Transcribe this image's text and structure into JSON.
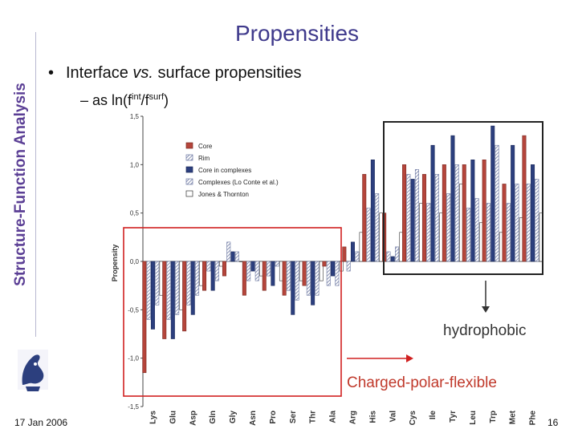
{
  "side_title": "Structure-Function Analysis",
  "slide_title": "Propensities",
  "bullet": {
    "prefix": "Interface ",
    "italic": "vs.",
    "suffix": " surface propensities"
  },
  "sub_bullet": {
    "prefix": "– as ln(f",
    "sup1": "int",
    "mid": "/f",
    "sup2": "surf",
    "suffix": ")"
  },
  "footer": {
    "date": "17 Jan 2006",
    "page": "16"
  },
  "colors": {
    "core": "#b5453b",
    "rim": "#9aa4c0",
    "core_complex": "#2c3f7e",
    "complexes": "#9aa4c0",
    "jones": "#ffffff",
    "title": "#3f3a8c",
    "side_title": "#5b3f95",
    "red_box": "#d02020"
  },
  "annotations": {
    "hydrophobic": "hydrophobic",
    "charged": "Charged-polar-flexible"
  },
  "chart_data": {
    "type": "bar",
    "ylabel": "Propensity",
    "ylim": [
      -1.5,
      1.5
    ],
    "yticks": [
      "1,5",
      "1,0",
      "0,5",
      "0,0",
      "-0,5",
      "-1,0",
      "-1,5"
    ],
    "ytick_values": [
      1.5,
      1.0,
      0.5,
      0.0,
      -0.5,
      -1.0,
      -1.5
    ],
    "legend_placement": "top-left",
    "categories": [
      "Lys",
      "Glu",
      "Asp",
      "Gln",
      "Gly",
      "Asn",
      "Pro",
      "Ser",
      "Thr",
      "Ala",
      "Arg",
      "His",
      "Val",
      "Cys",
      "Ile",
      "Tyr",
      "Leu",
      "Trp",
      "Met",
      "Phe"
    ],
    "series": [
      {
        "name": "Core",
        "values": [
          -1.15,
          -0.8,
          -0.72,
          -0.3,
          -0.15,
          -0.35,
          -0.3,
          -0.35,
          -0.25,
          -0.05,
          0.15,
          0.9,
          0.5,
          1.0,
          0.9,
          1.0,
          1.0,
          1.05,
          0.8,
          1.3
        ]
      },
      {
        "name": "Rim",
        "values": [
          -0.6,
          -0.6,
          -0.45,
          -0.1,
          0.2,
          -0.2,
          -0.15,
          -0.3,
          -0.35,
          -0.25,
          -0.1,
          0.55,
          0.1,
          0.9,
          0.6,
          0.7,
          0.55,
          0.6,
          0.6,
          0.8
        ]
      },
      {
        "name": "Core in complexes",
        "values": [
          -0.7,
          -0.8,
          -0.55,
          -0.3,
          0.1,
          -0.1,
          -0.25,
          -0.55,
          -0.45,
          -0.15,
          0.2,
          1.05,
          0.05,
          0.85,
          1.2,
          1.3,
          1.05,
          1.4,
          1.2,
          1.0
        ]
      },
      {
        "name": "Complexes (Lo Conte et al.)",
        "values": [
          -0.45,
          -0.55,
          -0.35,
          -0.2,
          0.1,
          -0.2,
          -0.05,
          -0.4,
          -0.35,
          -0.25,
          0.1,
          0.7,
          0.15,
          0.95,
          0.9,
          1.0,
          0.65,
          1.2,
          0.8,
          0.85
        ]
      },
      {
        "name": "Jones & Thornton",
        "values": [
          -0.35,
          -0.5,
          -0.25,
          -0.05,
          0.0,
          -0.15,
          -0.2,
          -0.2,
          -0.2,
          -0.1,
          0.3,
          0.5,
          0.3,
          0.6,
          0.5,
          0.8,
          0.4,
          0.3,
          0.45,
          0.5
        ]
      }
    ]
  }
}
